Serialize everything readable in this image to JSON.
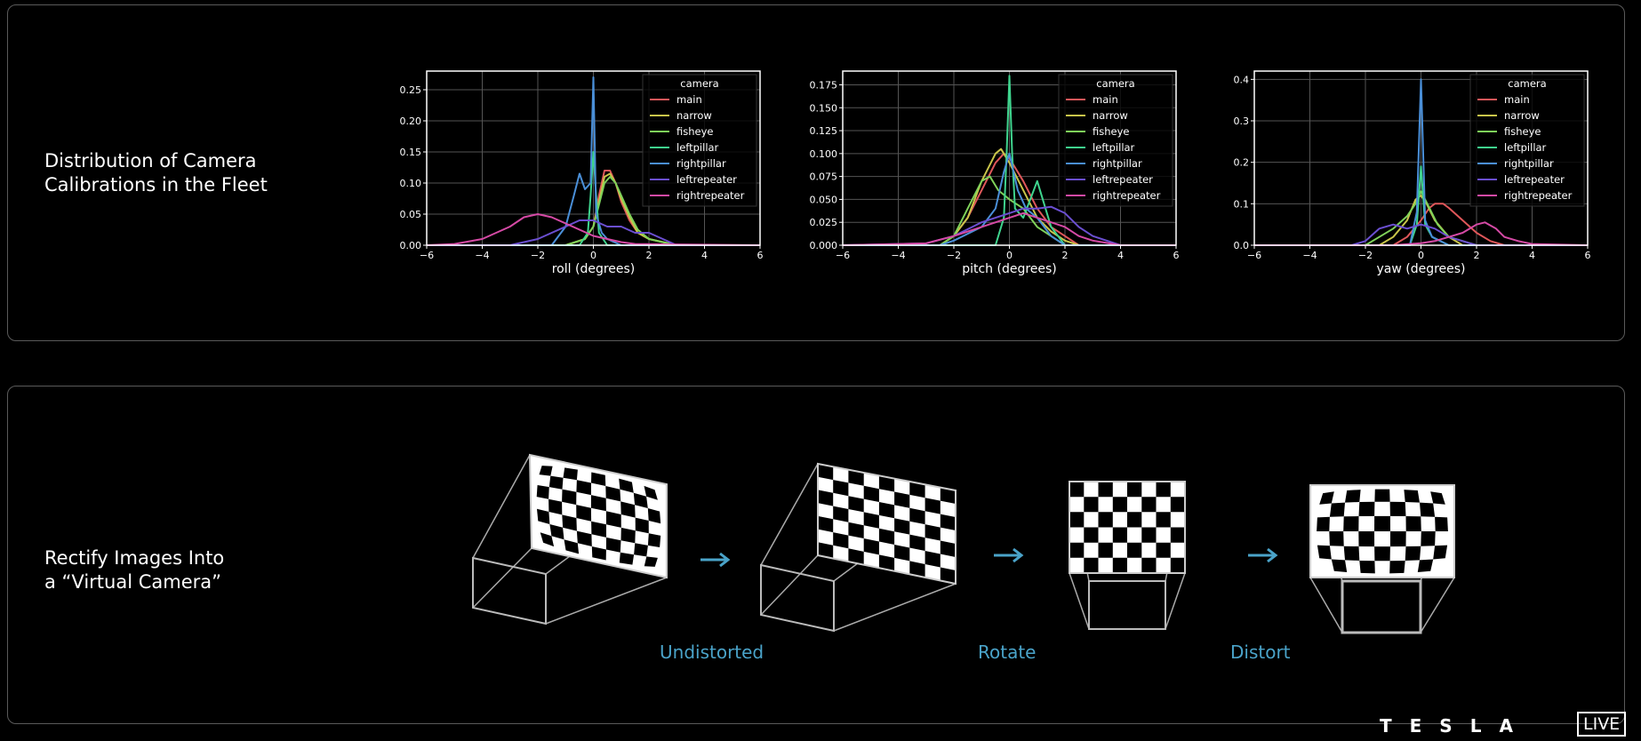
{
  "headings": {
    "calibration": "Distribution of Camera\nCalibrations in the Fleet",
    "rectify": "Rectify Images Into\na “Virtual Camera”"
  },
  "diagram_labels": {
    "undistorted": "Undistorted",
    "rotate": "Rotate",
    "distort": "Distort"
  },
  "branding": {
    "logo": "TESLA",
    "badge": "LIVE"
  },
  "colors": {
    "background": "#000000",
    "main": "#e0575a",
    "narrow": "#c9c54a",
    "fisheye": "#7fd25a",
    "leftpillar": "#3fd48e",
    "rightpillar": "#4a8fd8",
    "leftrepeater": "#6b4fd1",
    "rightrepeater": "#d64aa6",
    "accent_label": "#4aa3c9"
  },
  "chart_data": [
    {
      "type": "line",
      "xlabel": "roll (degrees)",
      "ylabel": "",
      "xlim": [
        -6,
        6
      ],
      "ylim": [
        0,
        0.28
      ],
      "xticks": [
        -6,
        -4,
        -2,
        0,
        2,
        4,
        6
      ],
      "xtick_labels": [
        "−6",
        "−4",
        "−2",
        "0",
        "2",
        "4",
        "6"
      ],
      "yticks": [
        0,
        0.05,
        0.1,
        0.15,
        0.2,
        0.25
      ],
      "ytick_labels": [
        "0.00",
        "0.05",
        "0.10",
        "0.15",
        "0.20",
        "0.25"
      ],
      "grid": true,
      "legend_title": "camera",
      "legend_position": "top-right",
      "series": [
        {
          "name": "main",
          "x": [
            -6,
            -1,
            -0.3,
            0,
            0.2,
            0.4,
            0.6,
            0.8,
            1,
            1.3,
            1.6,
            2,
            3,
            6
          ],
          "y": [
            0,
            0,
            0.01,
            0.03,
            0.08,
            0.12,
            0.12,
            0.1,
            0.07,
            0.04,
            0.02,
            0.01,
            0,
            0
          ]
        },
        {
          "name": "narrow",
          "x": [
            -6,
            -1,
            -0.3,
            0,
            0.2,
            0.4,
            0.6,
            0.8,
            1,
            1.3,
            1.6,
            2,
            3,
            6
          ],
          "y": [
            0,
            0,
            0.01,
            0.03,
            0.07,
            0.11,
            0.115,
            0.1,
            0.075,
            0.045,
            0.02,
            0.01,
            0,
            0
          ]
        },
        {
          "name": "fisheye",
          "x": [
            -6,
            -1,
            -0.3,
            0,
            0.2,
            0.4,
            0.6,
            0.8,
            1,
            1.3,
            1.6,
            2,
            3,
            6
          ],
          "y": [
            0,
            0,
            0.01,
            0.03,
            0.065,
            0.1,
            0.11,
            0.1,
            0.08,
            0.05,
            0.025,
            0.01,
            0,
            0
          ]
        },
        {
          "name": "leftpillar",
          "x": [
            -6,
            -0.5,
            -0.2,
            -0.1,
            0,
            0.1,
            0.2,
            0.5,
            6
          ],
          "y": [
            0,
            0,
            0.02,
            0.08,
            0.15,
            0.08,
            0.02,
            0,
            0
          ]
        },
        {
          "name": "rightpillar",
          "x": [
            -6,
            -1.5,
            -1,
            -0.7,
            -0.5,
            -0.3,
            -0.1,
            0,
            0.1,
            0.3,
            0.5,
            1,
            6
          ],
          "y": [
            0,
            0,
            0.03,
            0.08,
            0.115,
            0.09,
            0.1,
            0.27,
            0.05,
            0.02,
            0.01,
            0,
            0
          ]
        },
        {
          "name": "leftrepeater",
          "x": [
            -6,
            -3,
            -2,
            -1,
            -0.5,
            0,
            0.5,
            1,
            1.5,
            2,
            2.5,
            3,
            6
          ],
          "y": [
            0,
            0,
            0.01,
            0.03,
            0.04,
            0.04,
            0.03,
            0.03,
            0.02,
            0.02,
            0.01,
            0,
            0
          ]
        },
        {
          "name": "rightrepeater",
          "x": [
            -6,
            -5,
            -4,
            -3,
            -2.5,
            -2,
            -1.5,
            -1,
            -0.5,
            0,
            0.5,
            1,
            1.5,
            6
          ],
          "y": [
            0,
            0.002,
            0.01,
            0.03,
            0.045,
            0.05,
            0.045,
            0.035,
            0.025,
            0.015,
            0.01,
            0.005,
            0.002,
            0
          ]
        }
      ]
    },
    {
      "type": "line",
      "xlabel": "pitch (degrees)",
      "ylabel": "",
      "xlim": [
        -6,
        6
      ],
      "ylim": [
        0,
        0.19
      ],
      "xticks": [
        -6,
        -4,
        -2,
        0,
        2,
        4,
        6
      ],
      "xtick_labels": [
        "−6",
        "−4",
        "−2",
        "0",
        "2",
        "4",
        "6"
      ],
      "yticks": [
        0,
        0.025,
        0.05,
        0.075,
        0.1,
        0.125,
        0.15,
        0.175
      ],
      "ytick_labels": [
        "0.000",
        "0.025",
        "0.050",
        "0.075",
        "0.100",
        "0.125",
        "0.150",
        "0.175"
      ],
      "grid": true,
      "legend_title": "camera",
      "legend_position": "top-right",
      "series": [
        {
          "name": "main",
          "x": [
            -6,
            -2.5,
            -2,
            -1.5,
            -1,
            -0.5,
            -0.2,
            0,
            0.5,
            1,
            1.5,
            2,
            2.5,
            6
          ],
          "y": [
            0,
            0,
            0.01,
            0.03,
            0.06,
            0.09,
            0.1,
            0.095,
            0.07,
            0.04,
            0.02,
            0.01,
            0,
            0
          ]
        },
        {
          "name": "narrow",
          "x": [
            -6,
            -2.5,
            -2,
            -1.5,
            -1,
            -0.5,
            -0.3,
            0,
            0.5,
            1,
            1.5,
            2,
            2.5,
            6
          ],
          "y": [
            0,
            0,
            0.01,
            0.03,
            0.07,
            0.1,
            0.105,
            0.09,
            0.06,
            0.03,
            0.015,
            0.005,
            0,
            0
          ]
        },
        {
          "name": "fisheye",
          "x": [
            -6,
            -2.5,
            -2,
            -1.5,
            -1,
            -0.7,
            -0.4,
            0,
            0.5,
            1,
            1.5,
            2,
            6
          ],
          "y": [
            0,
            0,
            0.01,
            0.04,
            0.07,
            0.075,
            0.06,
            0.05,
            0.04,
            0.02,
            0.01,
            0,
            0
          ]
        },
        {
          "name": "leftpillar",
          "x": [
            -6,
            -0.5,
            -0.2,
            -0.1,
            0,
            0.1,
            0.2,
            0.5,
            1,
            1.5,
            2,
            6
          ],
          "y": [
            0,
            0,
            0.03,
            0.1,
            0.185,
            0.1,
            0.04,
            0.03,
            0.07,
            0.02,
            0,
            0
          ]
        },
        {
          "name": "rightpillar",
          "x": [
            -6,
            -2.5,
            -2,
            -1,
            -0.5,
            -0.2,
            0,
            0.3,
            0.6,
            1,
            1.5,
            2,
            6
          ],
          "y": [
            0,
            0,
            0.005,
            0.02,
            0.04,
            0.08,
            0.1,
            0.06,
            0.04,
            0.03,
            0.01,
            0,
            0
          ]
        },
        {
          "name": "leftrepeater",
          "x": [
            -6,
            -3,
            -2,
            -1,
            0,
            0.5,
            1,
            1.5,
            2,
            2.5,
            3,
            4,
            6
          ],
          "y": [
            0,
            0.002,
            0.01,
            0.025,
            0.035,
            0.04,
            0.04,
            0.042,
            0.035,
            0.02,
            0.01,
            0,
            0
          ]
        },
        {
          "name": "rightrepeater",
          "x": [
            -6,
            -3,
            -2,
            -1,
            0,
            0.5,
            1,
            1.5,
            2,
            2.5,
            3,
            4,
            6
          ],
          "y": [
            0,
            0.002,
            0.01,
            0.02,
            0.03,
            0.035,
            0.03,
            0.025,
            0.02,
            0.01,
            0.005,
            0,
            0
          ]
        }
      ]
    },
    {
      "type": "line",
      "xlabel": "yaw (degrees)",
      "ylabel": "",
      "xlim": [
        -6,
        6
      ],
      "ylim": [
        0,
        0.42
      ],
      "xticks": [
        -6,
        -4,
        -2,
        0,
        2,
        4,
        6
      ],
      "xtick_labels": [
        "−6",
        "−4",
        "−2",
        "0",
        "2",
        "4",
        "6"
      ],
      "yticks": [
        0,
        0.1,
        0.2,
        0.3,
        0.4
      ],
      "ytick_labels": [
        "0.0",
        "0.1",
        "0.2",
        "0.3",
        "0.4"
      ],
      "grid": true,
      "legend_title": "camera",
      "legend_position": "top-right",
      "series": [
        {
          "name": "main",
          "x": [
            -6,
            -1,
            -0.5,
            0,
            0.3,
            0.5,
            0.8,
            1,
            1.5,
            2,
            2.5,
            3,
            6
          ],
          "y": [
            0,
            0,
            0.02,
            0.06,
            0.09,
            0.1,
            0.1,
            0.09,
            0.06,
            0.03,
            0.01,
            0,
            0
          ]
        },
        {
          "name": "narrow",
          "x": [
            -6,
            -1.5,
            -1,
            -0.5,
            -0.2,
            0,
            0.2,
            0.5,
            1,
            1.5,
            6
          ],
          "y": [
            0,
            0,
            0.02,
            0.06,
            0.11,
            0.12,
            0.1,
            0.06,
            0.02,
            0,
            0
          ]
        },
        {
          "name": "fisheye",
          "x": [
            -6,
            -2,
            -1.5,
            -1,
            -0.5,
            -0.2,
            0,
            0.3,
            0.6,
            1,
            1.5,
            2,
            6
          ],
          "y": [
            0,
            0,
            0.02,
            0.04,
            0.07,
            0.1,
            0.13,
            0.09,
            0.05,
            0.02,
            0.01,
            0,
            0
          ]
        },
        {
          "name": "leftpillar",
          "x": [
            -6,
            -0.4,
            -0.15,
            0,
            0.15,
            0.4,
            1,
            6
          ],
          "y": [
            0,
            0,
            0.05,
            0.19,
            0.05,
            0.02,
            0,
            0
          ]
        },
        {
          "name": "rightpillar",
          "x": [
            -6,
            -0.4,
            -0.15,
            0,
            0.15,
            0.4,
            1,
            6
          ],
          "y": [
            0,
            0,
            0.08,
            0.4,
            0.06,
            0.02,
            0,
            0
          ]
        },
        {
          "name": "leftrepeater",
          "x": [
            -6,
            -2.5,
            -2,
            -1.5,
            -1,
            -0.5,
            0,
            0.5,
            1,
            1.5,
            2,
            6
          ],
          "y": [
            0,
            0,
            0.01,
            0.04,
            0.05,
            0.04,
            0.05,
            0.04,
            0.02,
            0.01,
            0,
            0
          ]
        },
        {
          "name": "rightrepeater",
          "x": [
            -6,
            -1,
            0,
            0.5,
            1,
            1.5,
            2,
            2.3,
            2.7,
            3,
            3.5,
            4,
            6
          ],
          "y": [
            0,
            0,
            0.005,
            0.01,
            0.02,
            0.03,
            0.05,
            0.055,
            0.04,
            0.02,
            0.01,
            0.003,
            0
          ]
        }
      ]
    }
  ]
}
